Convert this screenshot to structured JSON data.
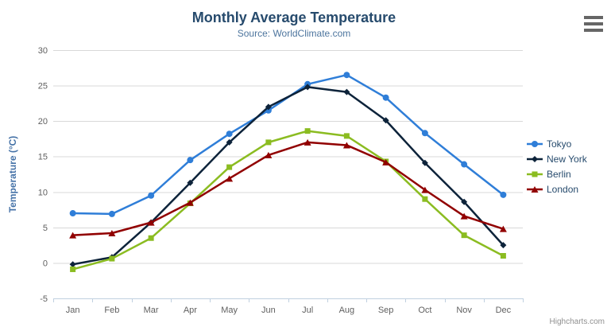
{
  "title": "Monthly Average Temperature",
  "subtitle": "Source: WorldClimate.com",
  "credits": "Highcharts.com",
  "icons": {
    "export_menu": "hamburger-icon"
  },
  "colors": {
    "title": "#274b6d",
    "subtitle": "#4d759e",
    "axis_title": "#4572a7",
    "axis_labels": "#606060",
    "gridline": "#d8d8d8",
    "axis_line": "#c0d0e0",
    "legend_text": "#274b6d",
    "credits": "#909090",
    "hamburger": "#666666",
    "tokyo": "#2f7ed8",
    "new_york": "#0d233a",
    "berlin": "#8bbc21",
    "london": "#910000"
  },
  "chart_data": {
    "type": "line",
    "title": "Monthly Average Temperature",
    "subtitle": "Source: WorldClimate.com",
    "xlabel": "",
    "ylabel": "Temperature (°C)",
    "ylim": [
      -5,
      30
    ],
    "ytick_step": 5,
    "grid": true,
    "legend_position": "right",
    "categories": [
      "Jan",
      "Feb",
      "Mar",
      "Apr",
      "May",
      "Jun",
      "Jul",
      "Aug",
      "Sep",
      "Oct",
      "Nov",
      "Dec"
    ],
    "series": [
      {
        "name": "Tokyo",
        "color": "#2f7ed8",
        "marker": "circle",
        "values": [
          7.0,
          6.9,
          9.5,
          14.5,
          18.2,
          21.5,
          25.2,
          26.5,
          23.3,
          18.3,
          13.9,
          9.6
        ]
      },
      {
        "name": "New York",
        "color": "#0d233a",
        "marker": "diamond",
        "values": [
          -0.2,
          0.8,
          5.7,
          11.3,
          17.0,
          22.0,
          24.8,
          24.1,
          20.1,
          14.1,
          8.6,
          2.5
        ]
      },
      {
        "name": "Berlin",
        "color": "#8bbc21",
        "marker": "square",
        "values": [
          -0.9,
          0.6,
          3.5,
          8.4,
          13.5,
          17.0,
          18.6,
          17.9,
          14.3,
          9.0,
          3.9,
          1.0
        ]
      },
      {
        "name": "London",
        "color": "#910000",
        "marker": "triangle",
        "values": [
          3.9,
          4.2,
          5.7,
          8.5,
          11.9,
          15.2,
          17.0,
          16.6,
          14.2,
          10.3,
          6.6,
          4.8
        ]
      }
    ]
  }
}
